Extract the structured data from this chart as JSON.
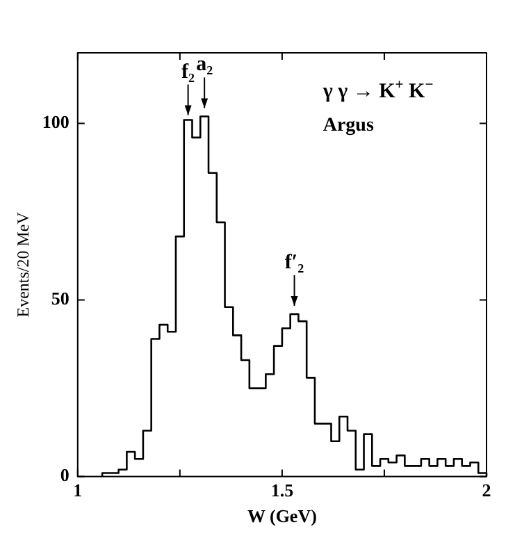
{
  "chart_data": {
    "type": "histogram",
    "xlabel": "W (GeV)",
    "ylabel": "Events/20 MeV",
    "bins": [
      1.06,
      1.08,
      1.1,
      1.12,
      1.14,
      1.16,
      1.18,
      1.2,
      1.22,
      1.24,
      1.26,
      1.28,
      1.3,
      1.32,
      1.34,
      1.36,
      1.38,
      1.4,
      1.42,
      1.44,
      1.46,
      1.48,
      1.5,
      1.52,
      1.54,
      1.56,
      1.58,
      1.6,
      1.62,
      1.64,
      1.66,
      1.68,
      1.7,
      1.72,
      1.74,
      1.76,
      1.78,
      1.8,
      1.82,
      1.84,
      1.86,
      1.88,
      1.9,
      1.92,
      1.94,
      1.96,
      1.98,
      2.0
    ],
    "values": [
      1,
      1,
      2,
      7,
      5,
      13,
      39,
      43,
      41,
      68,
      101,
      96,
      102,
      86,
      72,
      48,
      40,
      33,
      25,
      25,
      29,
      37,
      42,
      46,
      44,
      28,
      15,
      15,
      10,
      17,
      13,
      2,
      12,
      3,
      5,
      4,
      6,
      3,
      3,
      5,
      3,
      5,
      3,
      5,
      3,
      4,
      1
    ],
    "color": "#000000",
    "xlim": [
      1,
      2
    ],
    "xticks": [
      1,
      {
        "value": 1.25,
        "label": null
      },
      1.5,
      {
        "value": 1.75,
        "label": null
      },
      2
    ],
    "ylim": [
      0,
      120
    ],
    "yticks": [
      0,
      50,
      100
    ],
    "grid": false,
    "legend": false,
    "annotations": [
      {
        "text": "f₂",
        "x": 1.27,
        "y": 100
      },
      {
        "text": "a₂",
        "x": 1.31,
        "y": 102
      },
      {
        "text": "f′₂",
        "x": 1.53,
        "y": 46
      },
      "γ γ → K$^{+}$ K$^{−}$",
      "Argus"
    ]
  }
}
